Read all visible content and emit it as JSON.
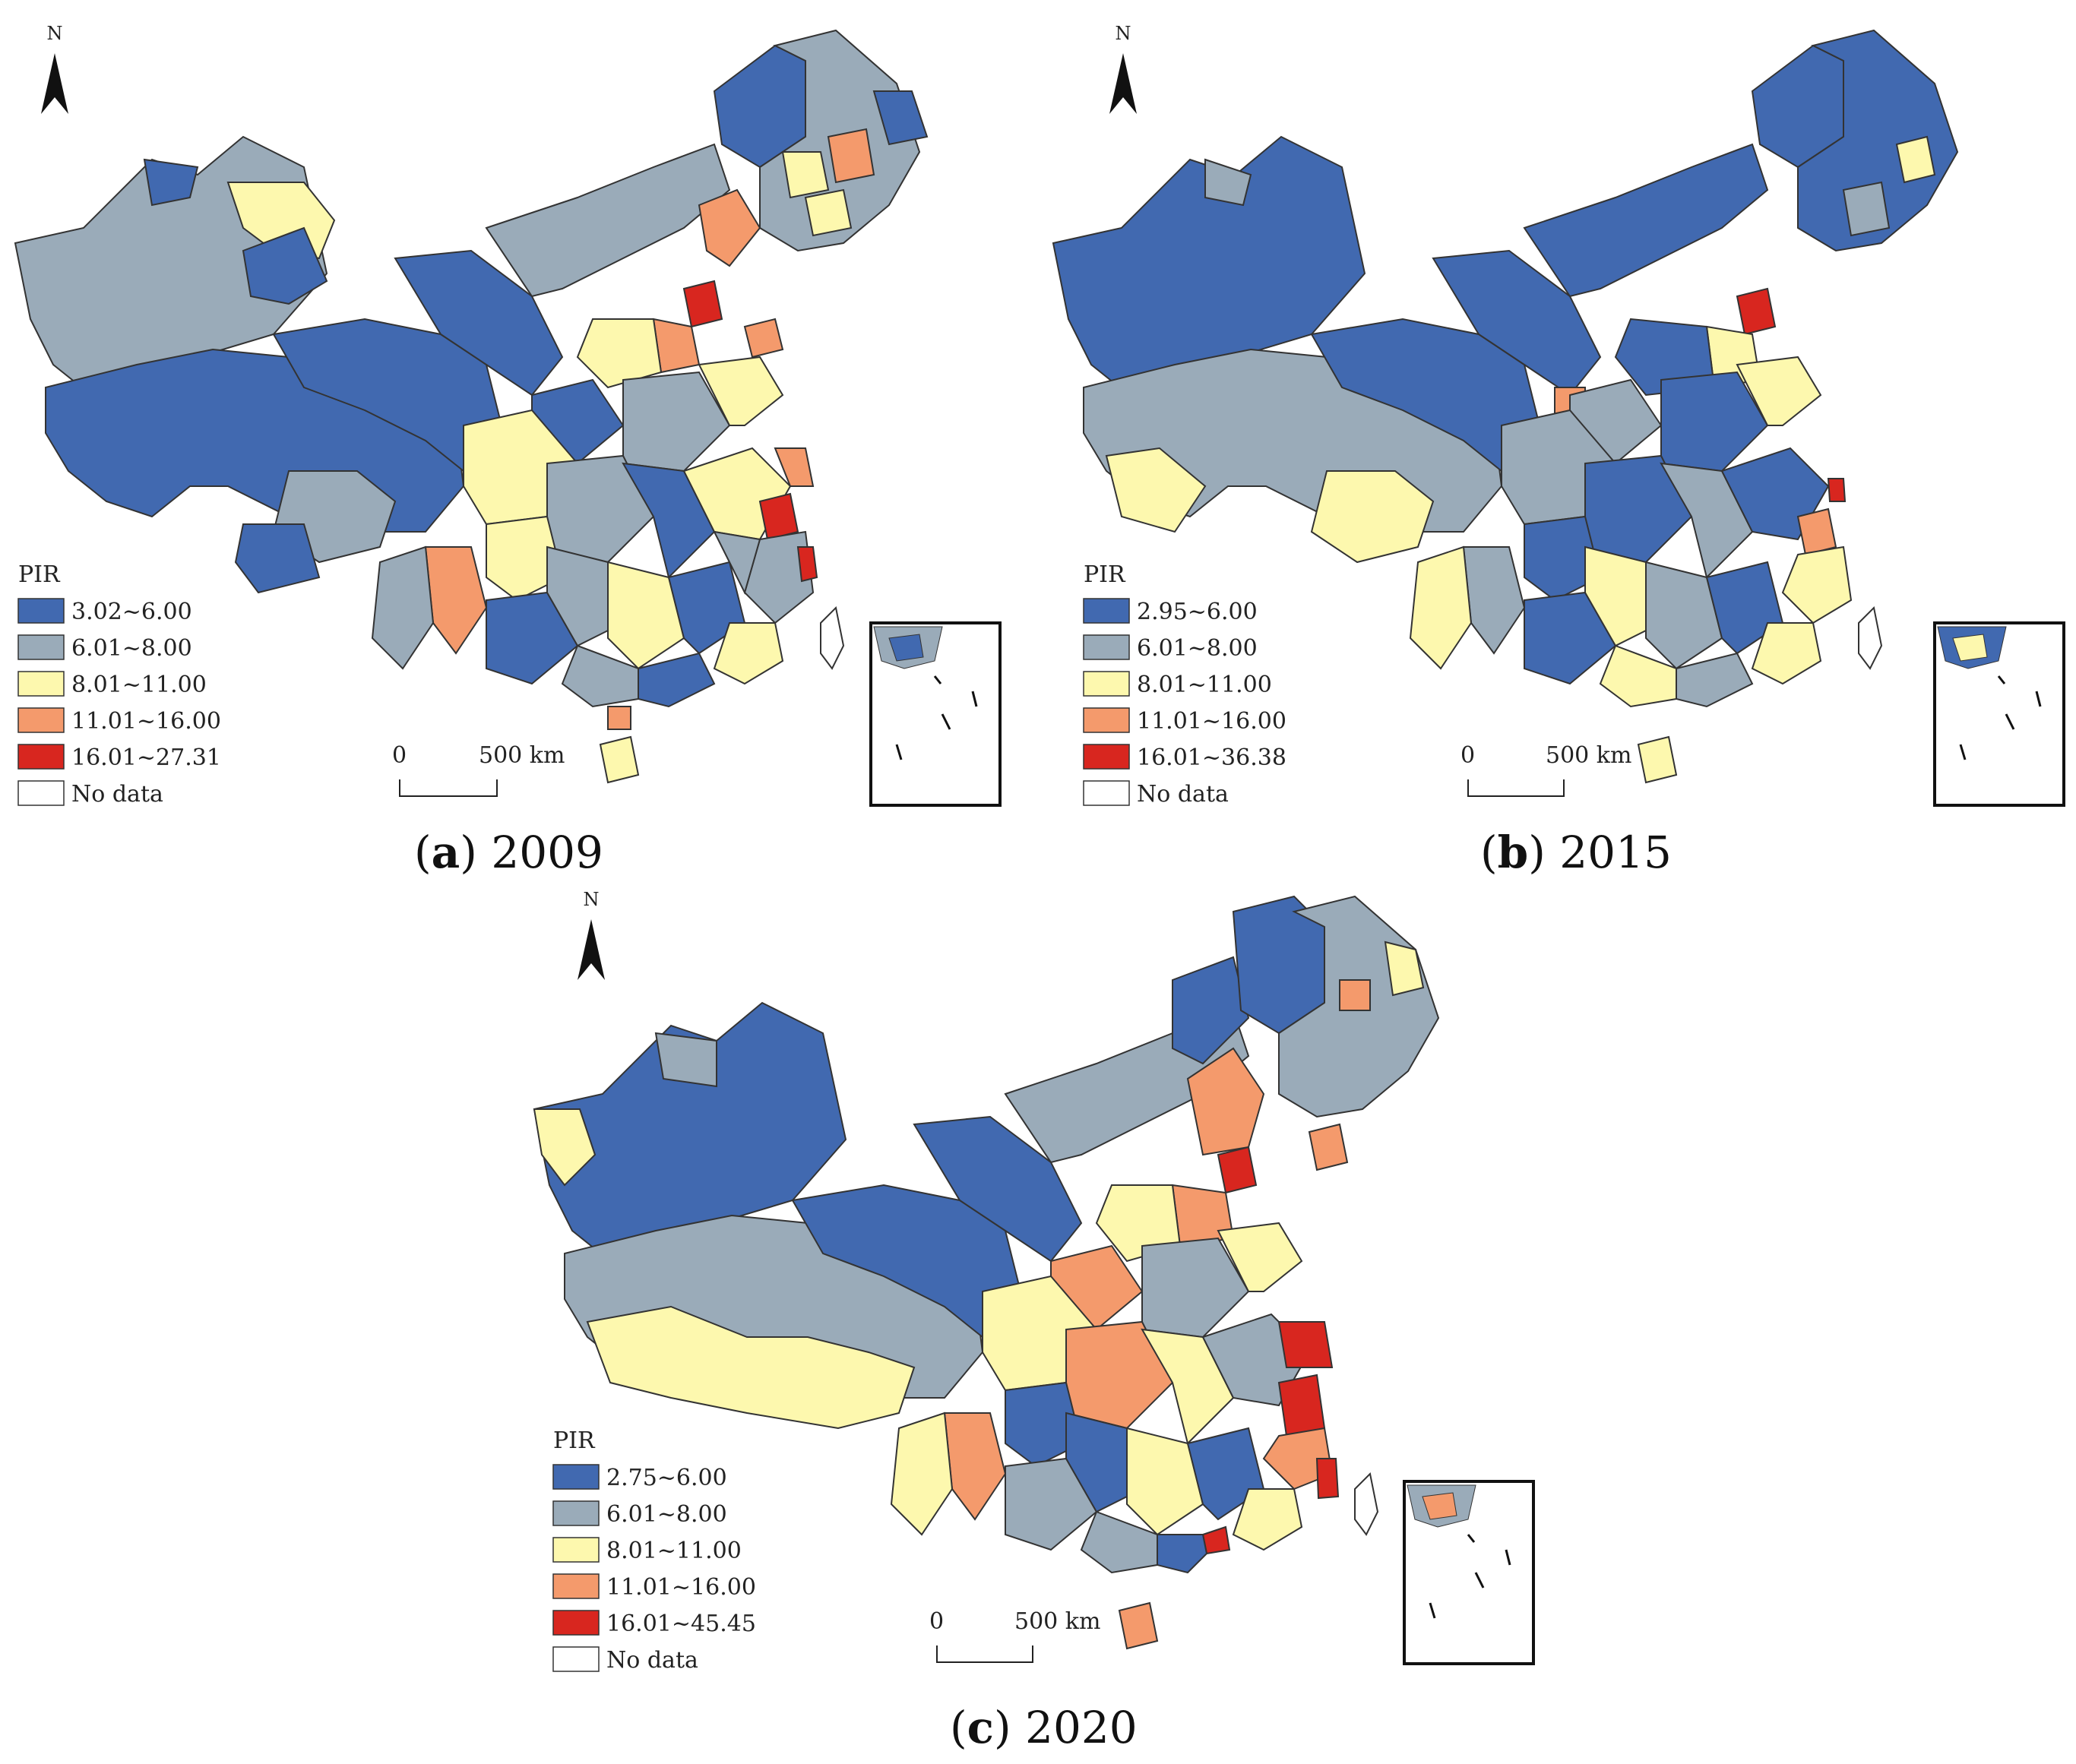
{
  "figure": {
    "legend_title": "PIR",
    "north_label": "N",
    "scale": {
      "zero": "0",
      "distance": "500 km"
    },
    "colors": {
      "class1": "#4169b0",
      "class2": "#9aabb9",
      "class3": "#fdf8ae",
      "class4": "#f49a6c",
      "class5": "#d8261f",
      "nodata": "#ffffff"
    },
    "panels": [
      {
        "letter": "a",
        "year": "2009",
        "legend": [
          "3.02~6.00",
          "6.01~8.00",
          "8.01~11.00",
          "11.01~16.00",
          "16.01~27.31",
          "No data"
        ]
      },
      {
        "letter": "b",
        "year": "2015",
        "legend": [
          "2.95~6.00",
          "6.01~8.00",
          "8.01~11.00",
          "11.01~16.00",
          "16.01~36.38",
          "No data"
        ]
      },
      {
        "letter": "c",
        "year": "2020",
        "legend": [
          "2.75~6.00",
          "6.01~8.00",
          "8.01~11.00",
          "11.01~16.00",
          "16.01~45.45",
          "No data"
        ]
      }
    ]
  }
}
